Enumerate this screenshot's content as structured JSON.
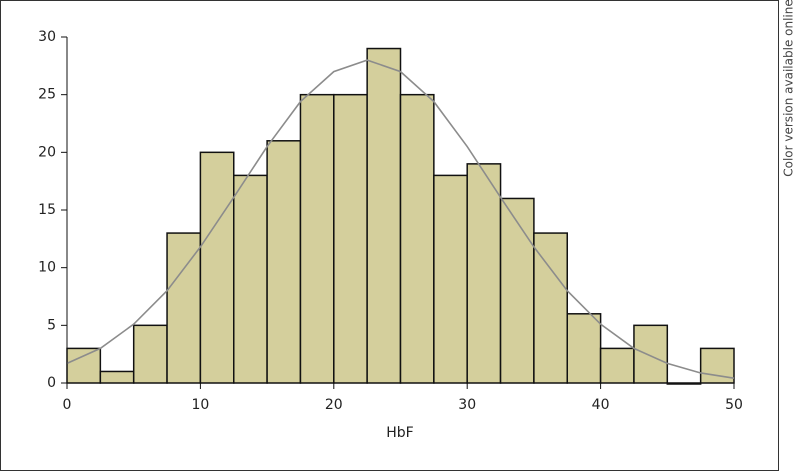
{
  "chart_data": {
    "type": "histogram",
    "bins": [
      0,
      2.5,
      5,
      7.5,
      10,
      12.5,
      15,
      17.5,
      20,
      22.5,
      25,
      27.5,
      30,
      32.5,
      35,
      37.5,
      40,
      42.5,
      45,
      47.5,
      50
    ],
    "counts": [
      3,
      1,
      5,
      13,
      20,
      18,
      21,
      25,
      25,
      29,
      25,
      18,
      19,
      16,
      13,
      6,
      3,
      5,
      0,
      3
    ],
    "color": "#d4cf9c",
    "curve": {
      "color": "#8c8c8c",
      "x": [
        0,
        2.5,
        5,
        7.5,
        10,
        12.5,
        15,
        17.5,
        20,
        22.5,
        25,
        27.5,
        30,
        32.5,
        35,
        37.5,
        40,
        42.5,
        45,
        47.5,
        50
      ],
      "values": [
        1.7,
        3.0,
        5.1,
        8.0,
        11.8,
        16.1,
        20.5,
        24.4,
        27.0,
        28,
        27.0,
        24.4,
        20.5,
        16.1,
        11.8,
        8.0,
        5.1,
        3.0,
        1.7,
        0.87,
        0.42
      ]
    },
    "xlabel": "HbF",
    "xlim": [
      0,
      50
    ],
    "xticks": [
      0,
      10,
      20,
      30,
      40,
      50
    ],
    "ylim": [
      0,
      30
    ],
    "yticks": [
      0,
      5,
      10,
      15,
      20,
      25,
      30
    ],
    "side_note": "Color version available online"
  }
}
